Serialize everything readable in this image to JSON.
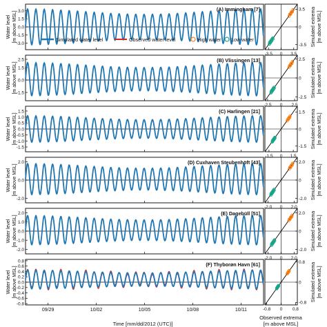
{
  "chart_data": {
    "type": "line",
    "xlabel": "Time [mm/dd/2012 (UTC)]",
    "x_ticks": [
      "09/29",
      "10/02",
      "10/05",
      "10/08",
      "10/11"
    ],
    "left_ylabel": [
      "Water level",
      "[m above MSL]"
    ],
    "right_ylabel": [
      "Simulated extrema",
      "[m above MSL]"
    ],
    "scatter_xlabel": [
      "Observed extrema",
      "[m above MSL]"
    ],
    "legend": {
      "simulated": "Simulated water level",
      "observed": "Observed water level",
      "high": "High water",
      "low": "Low water"
    },
    "colors": {
      "simulated": "#1f77b4",
      "observed": "#d62728",
      "high": "#ff7f0e",
      "low": "#17a589"
    },
    "panels": [
      {
        "title": "(A) Immingham [7]",
        "amplitude": 3.3,
        "mean": 0.0,
        "ylim": [
          -4.2,
          4.2
        ],
        "yticks": [
          -3.0,
          -1.5,
          0.0,
          1.5,
          3.0
        ],
        "scatter_xticks": [
          "-3.5",
          "0",
          "3.5"
        ],
        "scatter_yticks": [
          "-3.5",
          "0",
          "3.5"
        ],
        "scatter_lim": [
          -4.5,
          4.5
        ]
      },
      {
        "title": "(B) Vlissingen [13]",
        "amplitude": 2.0,
        "mean": 0.1,
        "ylim": [
          -2.5,
          3.0
        ],
        "yticks": [
          -1.5,
          0.0,
          1.5,
          2.5
        ],
        "scatter_xticks": [
          "-2.5",
          "0",
          "2.5"
        ],
        "scatter_yticks": [
          "-2.5",
          "0",
          "2.5"
        ],
        "scatter_lim": [
          -3.0,
          3.0
        ]
      },
      {
        "title": "(C) Harlingen [21]",
        "amplitude": 1.1,
        "mean": 0.0,
        "ylim": [
          -1.9,
          1.9
        ],
        "yticks": [
          -1.5,
          -1.0,
          -0.5,
          0.0,
          0.5,
          1.0,
          1.5
        ],
        "scatter_xticks": [
          "-1.5",
          "0",
          "1.5"
        ],
        "scatter_yticks": [
          "-1.5",
          "0",
          "1.5"
        ],
        "scatter_lim": [
          -2.0,
          2.0
        ]
      },
      {
        "title": "(D) Cuxhaven Steubenhöft [43]",
        "amplitude": 1.7,
        "mean": 0.1,
        "ylim": [
          -2.5,
          2.5
        ],
        "yticks": [
          -2.0,
          0.0,
          2.0
        ],
        "scatter_xticks": [
          "-2.0",
          "0",
          "2.0"
        ],
        "scatter_yticks": [
          "-2.0",
          "0",
          "2.0"
        ],
        "scatter_lim": [
          -2.5,
          2.5
        ]
      },
      {
        "title": "(E) Dagebüll [51]",
        "amplitude": 1.6,
        "mean": 0.1,
        "ylim": [
          -2.5,
          2.5
        ],
        "yticks": [
          -2.0,
          -1.0,
          0.0,
          1.0,
          2.0
        ],
        "scatter_xticks": [
          "-2.0",
          "0",
          "2.0"
        ],
        "scatter_yticks": [
          "-2.0",
          "0",
          "2.0"
        ],
        "scatter_lim": [
          -2.5,
          2.5
        ]
      },
      {
        "title": "(F) Thyborøn Havn [61]",
        "amplitude": 0.35,
        "mean": 0.1,
        "ylim": [
          -0.85,
          0.85
        ],
        "yticks": [
          -0.8,
          -0.6,
          -0.4,
          -0.2,
          0.0,
          0.2,
          0.4,
          0.6,
          0.8
        ],
        "scatter_xticks": [
          "-0.8",
          "0",
          "0.8"
        ],
        "scatter_yticks": [
          "-0.8",
          "0",
          "0.8"
        ],
        "scatter_lim": [
          -0.9,
          0.9
        ]
      }
    ]
  }
}
